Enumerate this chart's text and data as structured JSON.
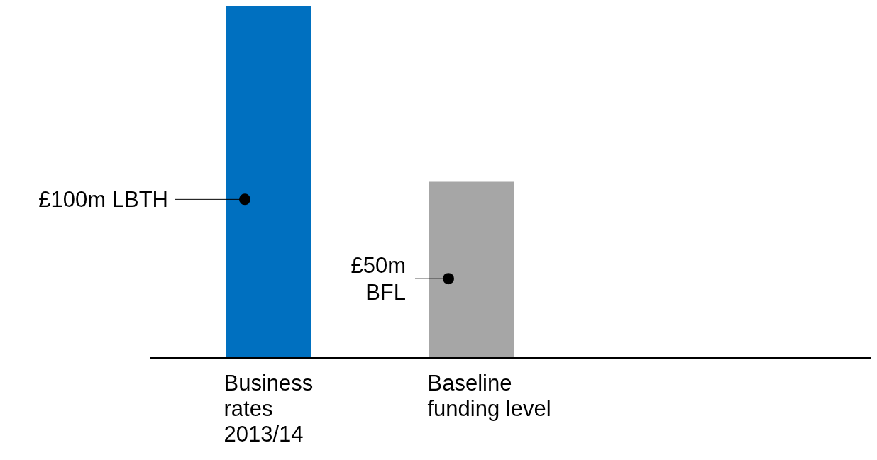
{
  "chart_data": {
    "type": "bar",
    "categories": [
      "Business\nrates\n2013/14",
      "Baseline\nfunding level"
    ],
    "values": [
      100,
      50
    ],
    "colors": [
      "#0070c0",
      "#a6a6a6"
    ],
    "value_labels": [
      "£100m LBTH",
      "£50m\nBFL"
    ],
    "grid": false,
    "legend": false
  }
}
